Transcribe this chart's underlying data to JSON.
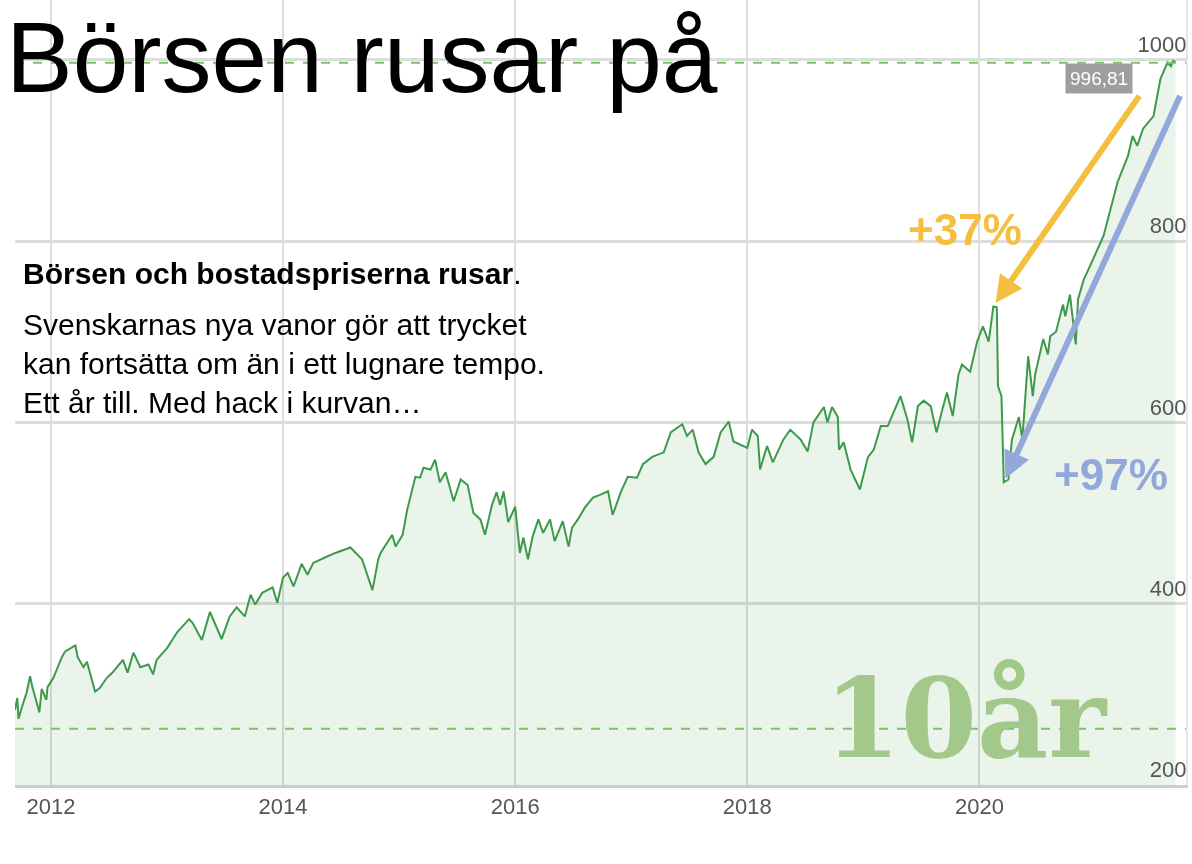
{
  "chart_data": {
    "type": "area",
    "title": "Börsen rusar på",
    "subtitle": "Börsen och bostadspriserna rusar.",
    "annotations": [
      "Svenskarnas nya vanor gör att trycket\nkan fortsätta om än i ett lugnare tempo.\nEtt år till. Med hack i kurvan…",
      {
        "text": "+37%",
        "x": 2020.12,
        "y": 728
      },
      {
        "text": "+97%",
        "x": 2020.21,
        "y": 534
      },
      "10år"
    ],
    "x": [
      2011.69,
      2011.71,
      2011.72,
      2011.75,
      2011.79,
      2011.82,
      2011.84,
      2011.9,
      2011.92,
      2011.96,
      2011.97,
      2012.02,
      2012.09,
      2012.12,
      2012.21,
      2012.23,
      2012.28,
      2012.31,
      2012.38,
      2012.42,
      2012.48,
      2012.53,
      2012.62,
      2012.66,
      2012.71,
      2012.77,
      2012.84,
      2012.88,
      2012.91,
      2013.0,
      2013.09,
      2013.19,
      2013.22,
      2013.3,
      2013.37,
      2013.41,
      2013.47,
      2013.54,
      2013.6,
      2013.67,
      2013.72,
      2013.76,
      2013.82,
      2013.91,
      2013.95,
      2014.0,
      2014.04,
      2014.09,
      2014.16,
      2014.21,
      2014.26,
      2014.36,
      2014.45,
      2014.58,
      2014.68,
      2014.77,
      2014.82,
      2014.84,
      2014.94,
      2014.97,
      2015.03,
      2015.07,
      2015.14,
      2015.18,
      2015.21,
      2015.27,
      2015.31,
      2015.35,
      2015.4,
      2015.47,
      2015.53,
      2015.59,
      2015.64,
      2015.7,
      2015.74,
      2015.8,
      2015.84,
      2015.87,
      2015.9,
      2015.94,
      2016.0,
      2016.04,
      2016.07,
      2016.11,
      2016.15,
      2016.2,
      2016.24,
      2016.3,
      2016.34,
      2016.41,
      2016.46,
      2016.49,
      2016.54,
      2016.6,
      2016.67,
      2016.73,
      2016.8,
      2016.84,
      2016.91,
      2016.97,
      2017.05,
      2017.1,
      2017.18,
      2017.28,
      2017.34,
      2017.44,
      2017.48,
      2017.53,
      2017.58,
      2017.64,
      2017.71,
      2017.77,
      2017.84,
      2017.88,
      2018.0,
      2018.04,
      2018.09,
      2018.11,
      2018.17,
      2018.22,
      2018.31,
      2018.37,
      2018.46,
      2018.52,
      2018.57,
      2018.66,
      2018.69,
      2018.73,
      2018.78,
      2018.79,
      2018.83,
      2018.89,
      2018.97,
      2019.04,
      2019.09,
      2019.15,
      2019.21,
      2019.26,
      2019.32,
      2019.38,
      2019.42,
      2019.47,
      2019.52,
      2019.58,
      2019.63,
      2019.68,
      2019.72,
      2019.77,
      2019.82,
      2019.85,
      2019.92,
      2019.98,
      2020.03,
      2020.08,
      2020.12,
      2020.15,
      2020.16,
      2020.19,
      2020.21,
      2020.25,
      2020.28,
      2020.34,
      2020.37,
      2020.42,
      2020.46,
      2020.48,
      2020.55,
      2020.59,
      2020.61,
      2020.66,
      2020.72,
      2020.74,
      2020.78,
      2020.83,
      2020.85,
      2020.9,
      2020.93,
      2021.07,
      2021.19,
      2021.28,
      2021.32,
      2021.36,
      2021.41,
      2021.5,
      2021.56,
      2021.62,
      2021.65,
      2021.67,
      2021.69
    ],
    "values": [
      283,
      296,
      273,
      286,
      302,
      320,
      308,
      280,
      306,
      294,
      308,
      318,
      340,
      347,
      354,
      341,
      330,
      336,
      303,
      307,
      318,
      324,
      338,
      324,
      346,
      330,
      333,
      322,
      338,
      351,
      369,
      383,
      379,
      360,
      391,
      379,
      361,
      386,
      396,
      386,
      410,
      399,
      412,
      418,
      401,
      429,
      434,
      419,
      444,
      432,
      445,
      451,
      456,
      462,
      449,
      415,
      449,
      456,
      476,
      463,
      476,
      504,
      540,
      539,
      550,
      548,
      559,
      534,
      545,
      513,
      537,
      531,
      500,
      493,
      476,
      509,
      523,
      509,
      524,
      490,
      507,
      456,
      473,
      449,
      474,
      493,
      478,
      493,
      469,
      491,
      463,
      484,
      493,
      506,
      517,
      520,
      524,
      498,
      523,
      540,
      539,
      554,
      562,
      567,
      589,
      598,
      585,
      592,
      567,
      554,
      562,
      589,
      601,
      579,
      572,
      592,
      585,
      548,
      574,
      556,
      581,
      592,
      581,
      568,
      600,
      617,
      600,
      617,
      606,
      570,
      578,
      548,
      526,
      562,
      570,
      596,
      596,
      611,
      629,
      603,
      578,
      618,
      624,
      618,
      589,
      614,
      633,
      607,
      653,
      664,
      656,
      689,
      706,
      689,
      728,
      727,
      640,
      629,
      534,
      537,
      581,
      606,
      581,
      673,
      629,
      653,
      692,
      675,
      695,
      700,
      730,
      717,
      741,
      686,
      736,
      758,
      766,
      806,
      865,
      894,
      916,
      905,
      924,
      938,
      979,
      997,
      993,
      999,
      997
    ],
    "color": "#3d9a4b",
    "xlim": [
      2011.69,
      2021.78
    ],
    "xticks": [
      2012,
      2014,
      2016,
      2018,
      2020
    ],
    "ylim": [
      200,
      1066
    ],
    "yticks": [
      200,
      400,
      600,
      800,
      1000
    ],
    "grid": true,
    "ref_lines": [
      {
        "axis": "y",
        "value": 996.81,
        "label": "996,81",
        "color": "#7cc16e",
        "line_style": "dashed"
      },
      {
        "axis": "y",
        "value": 262,
        "color": "#7cc16e",
        "line_style": "dashed"
      }
    ]
  }
}
